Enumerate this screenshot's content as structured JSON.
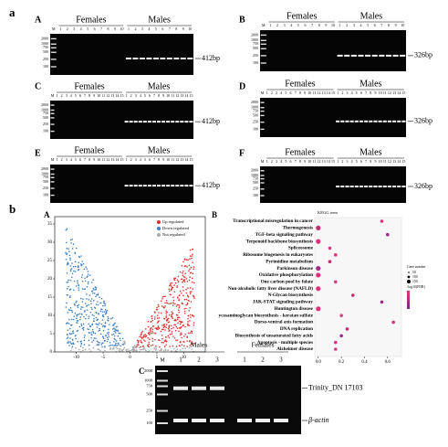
{
  "figure_a": {
    "label": "a",
    "gels": [
      {
        "label": "A",
        "females": "Females",
        "males": "Males",
        "marker": "M",
        "female_lanes": [
          1,
          2,
          3,
          4,
          5,
          6,
          7,
          8,
          9,
          10
        ],
        "male_lanes": [
          1,
          2,
          3,
          4,
          5,
          6,
          7,
          8,
          9,
          10
        ],
        "ladder": [
          2000,
          1000,
          750,
          500,
          250,
          100
        ],
        "band": "412bp"
      },
      {
        "label": "B",
        "females": "Females",
        "males": "Males",
        "marker": "M",
        "female_lanes": [
          1,
          2,
          3,
          4,
          5,
          6,
          7,
          8,
          9,
          10
        ],
        "male_lanes": [
          1,
          2,
          3,
          4,
          5,
          6,
          7,
          8,
          9,
          10
        ],
        "ladder": [
          2000,
          1000,
          750,
          500,
          250,
          100
        ],
        "band": "326bp"
      },
      {
        "label": "C",
        "females": "Females",
        "males": "Males",
        "marker": "M",
        "female_lanes": [
          1,
          2,
          3,
          4,
          5,
          6,
          7,
          8,
          9,
          10,
          11,
          12,
          13,
          14,
          15
        ],
        "male_lanes": [
          1,
          2,
          3,
          4,
          5,
          6,
          7,
          8,
          9,
          10,
          11,
          12,
          13,
          14,
          15
        ],
        "ladder": [
          2000,
          1000,
          750,
          500,
          250,
          100
        ],
        "band": "412bp"
      },
      {
        "label": "D",
        "females": "Females",
        "males": "Males",
        "marker": "M",
        "female_lanes": [
          1,
          2,
          3,
          4,
          5,
          6,
          7,
          8,
          9,
          10,
          11,
          12,
          13,
          14,
          15
        ],
        "male_lanes": [
          1,
          2,
          3,
          4,
          5,
          6,
          7,
          8,
          9,
          10,
          11,
          12,
          13,
          14,
          15
        ],
        "ladder": [
          2000,
          1000,
          750,
          500,
          250,
          100
        ],
        "band": "326bp"
      },
      {
        "label": "E",
        "females": "Females",
        "males": "Males",
        "marker": "M",
        "female_lanes": [
          1,
          2,
          3,
          4,
          5,
          6,
          7,
          8,
          9,
          10,
          11,
          12,
          13,
          14,
          15
        ],
        "male_lanes": [
          1,
          2,
          3,
          4,
          5,
          6,
          7,
          8,
          9,
          10,
          11,
          12,
          13,
          14,
          15
        ],
        "ladder": [
          2000,
          1000,
          750,
          500,
          250,
          100
        ],
        "band": "412bp"
      },
      {
        "label": "F",
        "females": "Females",
        "males": "Males",
        "marker": "M",
        "female_lanes": [
          1,
          2,
          3,
          4,
          5,
          6,
          7,
          8,
          9,
          10,
          11,
          12,
          13,
          14,
          15
        ],
        "male_lanes": [
          1,
          2,
          3,
          4,
          5,
          6,
          7,
          8,
          9,
          10,
          11,
          12,
          13,
          14,
          15
        ],
        "ladder": [
          2000,
          1000,
          750,
          500,
          250,
          100
        ],
        "band": "326bp"
      }
    ]
  },
  "figure_b": {
    "label": "b",
    "volcano": {
      "label": "A",
      "legend": [
        "Up regulated",
        "Down regulated",
        "Not regulated"
      ],
      "xlim": [
        -14,
        14
      ],
      "ylim": [
        0,
        37
      ],
      "xticks": [
        -10,
        -5,
        0,
        5,
        10
      ],
      "yticks": [
        0,
        5,
        10,
        15,
        20,
        25,
        30,
        35
      ]
    },
    "kegg": {
      "label": "B",
      "title": "KEGG term",
      "terms": [
        "Transcriptional misregulation in cancer",
        "Thermogenesis",
        "TGF-beta signaling pathway",
        "Terpenoid backbone biosynthesis",
        "Spliceosome",
        "Ribosome biogenesis in eukaryotes",
        "Pyrimidine metabolism",
        "Parkinson disease",
        "Oxidative phosphorylation",
        "One carbon pool by folate",
        "Non-alcoholic fatty liver disease (NAFLD)",
        "N-Glycan biosynthesis",
        "JAK-STAT signaling pathway",
        "Huntington disease",
        "ycosaminoglycan biosynthesis - keratan sulfate",
        "Dorso-ventral axis formation",
        "DNA replication",
        "Biosynthesis of unsaturated fatty acids",
        "Apoptosis - multiple species",
        "Alzheimer disease"
      ],
      "x": [
        0.55,
        0.0,
        0.6,
        0.0,
        0.1,
        0.15,
        0.1,
        0.0,
        0.0,
        0.15,
        0.0,
        0.3,
        0.55,
        0.0,
        0.2,
        0.65,
        0.25,
        0.2,
        0.15,
        0.15
      ],
      "xlim": [
        -0.03,
        0.72
      ],
      "xticks": [
        {
          "value": 0,
          "label": "0.0"
        },
        0.2,
        0.4,
        0.6
      ],
      "size_legend_title": "Gene number",
      "size_legend": [
        50,
        100,
        150
      ],
      "color_legend_title": "-log10(FDR)"
    },
    "gel": {
      "label": "C",
      "males": "Males",
      "females": "Females",
      "marker": "M",
      "male_lanes": [
        1,
        2,
        3
      ],
      "female_lanes": [
        1,
        2,
        3
      ],
      "ladder": [
        2000,
        1000,
        750,
        500,
        250,
        100
      ],
      "bands": [
        "Trinity_DN 17103",
        "β-actin"
      ]
    }
  }
}
